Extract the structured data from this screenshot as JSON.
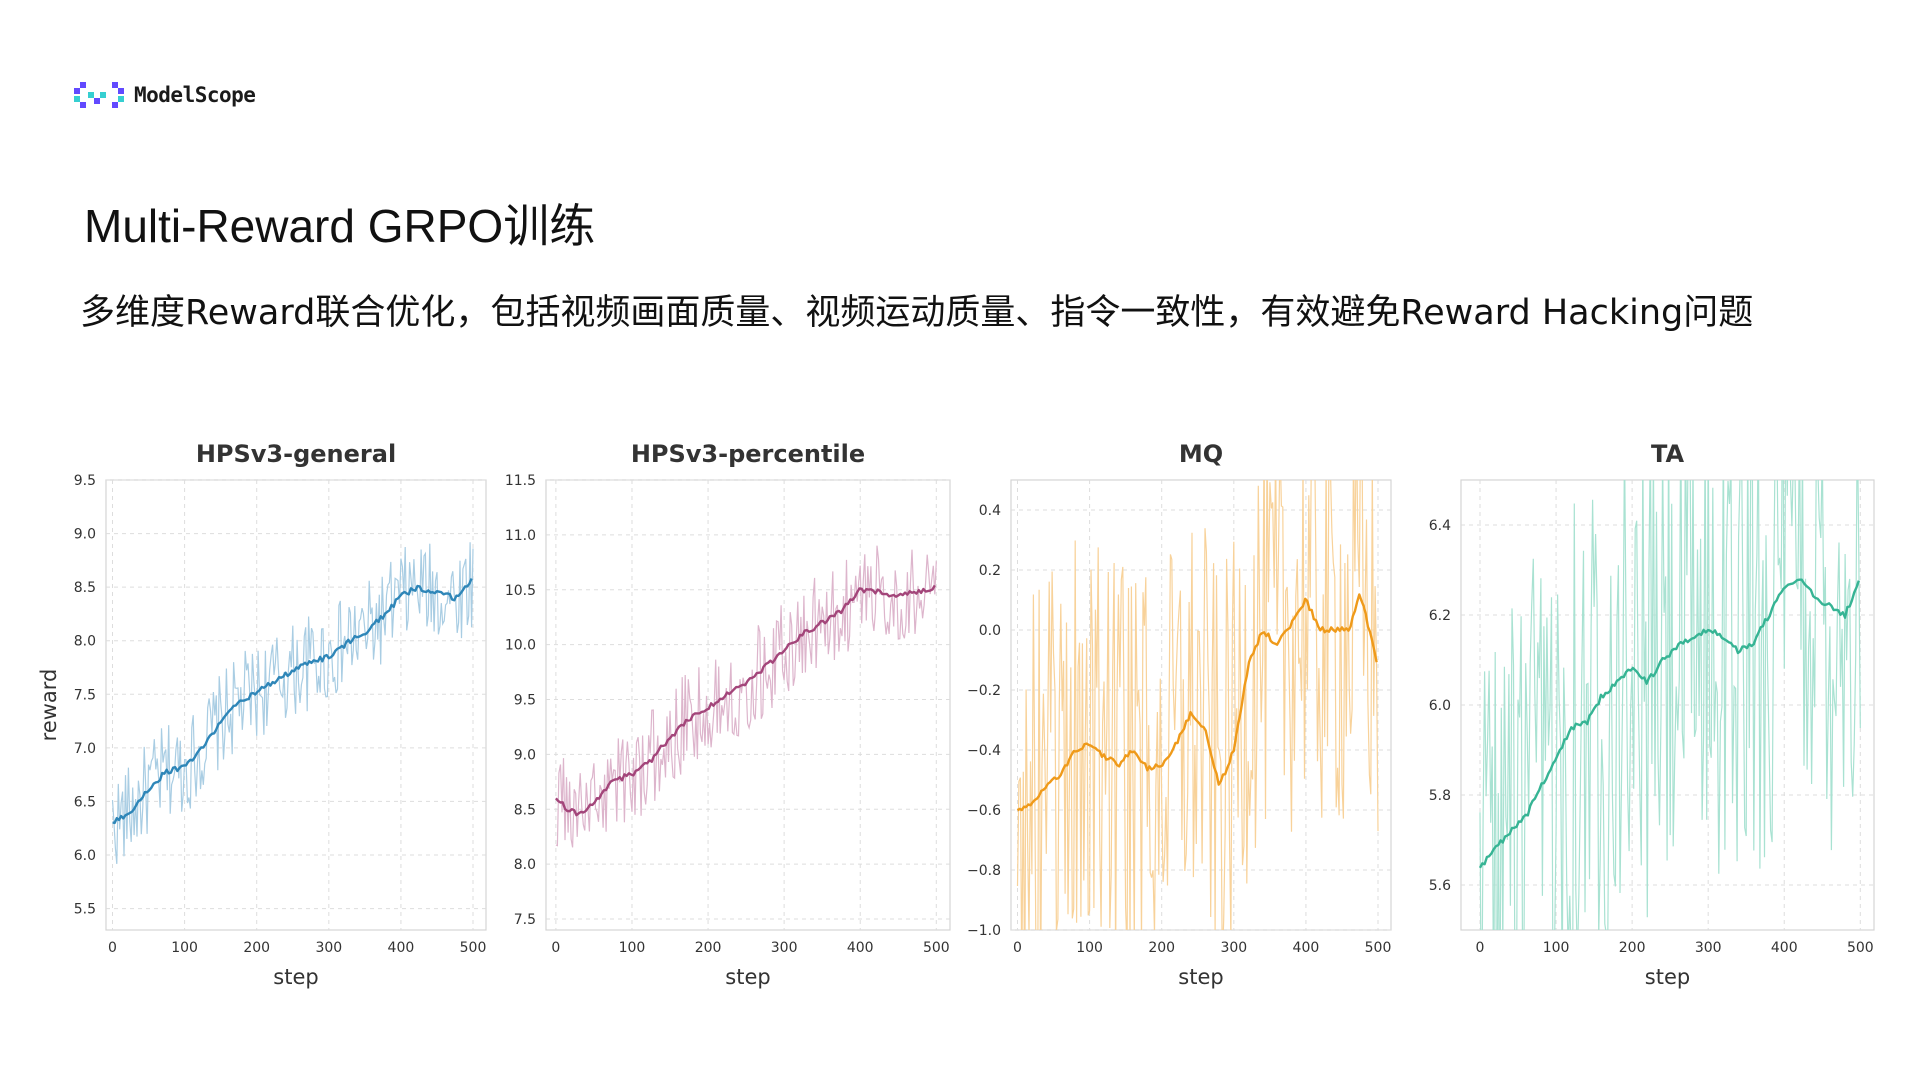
{
  "header": {
    "logo_text": "ModelScope",
    "logo_icon": "modelscope-logo-icon",
    "title": "Multi-Reward GRPO训练",
    "subtitle": "多维度Reward联合优化，包括视频画面质量、视频运动质量、指令一致性，有效避免Reward Hacking问题"
  },
  "chart_data": [
    {
      "type": "line",
      "title": "HPSv3-general",
      "xlabel": "step",
      "ylabel": "reward",
      "xlim": [
        -9,
        518
      ],
      "ylim": [
        5.3,
        9.5
      ],
      "xticks": [
        0,
        100,
        200,
        300,
        400,
        500
      ],
      "yticks": [
        5.5,
        6.0,
        6.5,
        7.0,
        7.5,
        8.0,
        8.5,
        9.0,
        9.5
      ],
      "grid": true,
      "color": "#2e86b8",
      "raw_color": "#a9cde3",
      "series": [
        {
          "role": "smoothed",
          "x": [
            0,
            25,
            50,
            75,
            100,
            125,
            150,
            175,
            200,
            225,
            250,
            275,
            300,
            325,
            350,
            375,
            400,
            425,
            450,
            475,
            500
          ],
          "y": [
            6.3,
            6.4,
            6.62,
            6.78,
            6.82,
            7.0,
            7.25,
            7.42,
            7.52,
            7.62,
            7.72,
            7.8,
            7.85,
            7.98,
            8.08,
            8.22,
            8.42,
            8.5,
            8.44,
            8.4,
            8.58
          ]
        },
        {
          "role": "raw",
          "x": [
            0,
            500
          ],
          "y": [
            6.3,
            8.58
          ],
          "noise": 0.45
        }
      ]
    },
    {
      "type": "line",
      "title": "HPSv3-percentile",
      "xlabel": "step",
      "ylabel": "",
      "xlim": [
        -13,
        518
      ],
      "ylim": [
        7.4,
        11.5
      ],
      "xticks": [
        0,
        100,
        200,
        300,
        400,
        500
      ],
      "yticks": [
        7.5,
        8.0,
        8.5,
        9.0,
        9.5,
        10.0,
        10.5,
        11.0,
        11.5
      ],
      "grid": true,
      "color": "#a3457a",
      "raw_color": "#ddb5cc",
      "series": [
        {
          "role": "smoothed",
          "x": [
            0,
            15,
            30,
            50,
            75,
            100,
            125,
            150,
            175,
            200,
            225,
            250,
            275,
            300,
            325,
            350,
            375,
            400,
            425,
            450,
            475,
            500
          ],
          "y": [
            8.6,
            8.5,
            8.45,
            8.55,
            8.76,
            8.82,
            8.95,
            9.15,
            9.32,
            9.42,
            9.56,
            9.65,
            9.8,
            9.95,
            10.1,
            10.2,
            10.3,
            10.5,
            10.48,
            10.45,
            10.47,
            10.52
          ]
        },
        {
          "role": "raw",
          "x": [
            0,
            500
          ],
          "y": [
            8.6,
            10.52
          ],
          "noise": 0.45
        }
      ]
    },
    {
      "type": "line",
      "title": "MQ",
      "xlabel": "step",
      "ylabel": "",
      "xlim": [
        -9,
        518
      ],
      "ylim": [
        -1.0,
        0.5
      ],
      "xticks": [
        0,
        100,
        200,
        300,
        400,
        500
      ],
      "yticks": [
        -1.0,
        -0.8,
        -0.6,
        -0.4,
        -0.2,
        0.0,
        0.2,
        0.4
      ],
      "ytick_labels": [
        "−1.0",
        "−0.8",
        "−0.6",
        "−0.4",
        "−0.2",
        "0.0",
        "0.2",
        "0.4"
      ],
      "grid": true,
      "color": "#ef9a1a",
      "raw_color": "#f8d29a",
      "series": [
        {
          "role": "smoothed",
          "x": [
            0,
            20,
            40,
            60,
            80,
            100,
            120,
            140,
            160,
            180,
            200,
            220,
            240,
            260,
            280,
            300,
            320,
            340,
            360,
            380,
            400,
            420,
            440,
            460,
            475,
            490,
            500
          ],
          "y": [
            -0.6,
            -0.58,
            -0.52,
            -0.48,
            -0.4,
            -0.38,
            -0.42,
            -0.45,
            -0.4,
            -0.46,
            -0.45,
            -0.38,
            -0.28,
            -0.33,
            -0.52,
            -0.4,
            -0.12,
            0.0,
            -0.05,
            0.02,
            0.1,
            0.0,
            0.0,
            0.0,
            0.12,
            -0.02,
            -0.12
          ]
        },
        {
          "role": "raw",
          "x": [
            0,
            500
          ],
          "y": [
            -0.6,
            -0.12
          ],
          "noise": 0.7
        }
      ]
    },
    {
      "type": "line",
      "title": "TA",
      "xlabel": "step",
      "ylabel": "",
      "xlim": [
        -25,
        518
      ],
      "ylim": [
        5.5,
        6.5
      ],
      "xticks": [
        0,
        100,
        200,
        300,
        400,
        500
      ],
      "yticks": [
        5.6,
        5.8,
        6.0,
        6.2,
        6.4
      ],
      "grid": true,
      "color": "#36b494",
      "raw_color": "#a9e2d2",
      "series": [
        {
          "role": "smoothed",
          "x": [
            0,
            20,
            40,
            60,
            80,
            100,
            120,
            140,
            160,
            180,
            200,
            220,
            240,
            260,
            280,
            300,
            320,
            340,
            360,
            380,
            400,
            420,
            440,
            460,
            480,
            500
          ],
          "y": [
            5.64,
            5.68,
            5.72,
            5.75,
            5.82,
            5.88,
            5.95,
            5.96,
            6.02,
            6.05,
            6.08,
            6.05,
            6.1,
            6.13,
            6.15,
            6.17,
            6.15,
            6.12,
            6.14,
            6.2,
            6.26,
            6.28,
            6.24,
            6.22,
            6.2,
            6.28
          ]
        },
        {
          "role": "raw",
          "x": [
            0,
            500
          ],
          "y": [
            5.64,
            6.28
          ],
          "noise": 0.55
        }
      ]
    }
  ]
}
